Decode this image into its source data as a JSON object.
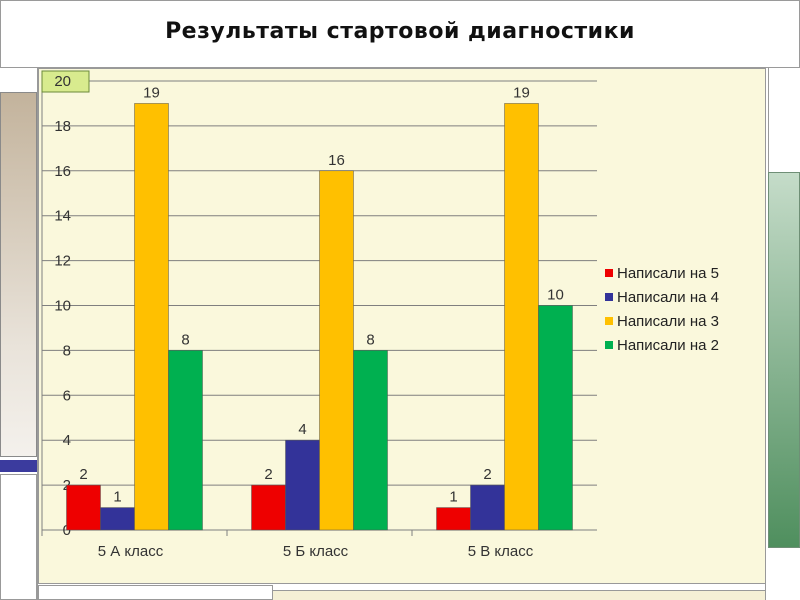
{
  "page": {
    "title": "Результаты стартовой диагностики"
  },
  "chart_data": {
    "type": "bar",
    "title": "",
    "xlabel": "",
    "ylabel": "",
    "categories": [
      "5 А класс",
      "5 Б  класс",
      "5 В класс"
    ],
    "series": [
      {
        "name": "Написали на 5",
        "color": "#ee0000",
        "values": [
          2,
          2,
          1
        ]
      },
      {
        "name": "Написали на 4",
        "color": "#333399",
        "values": [
          1,
          4,
          2
        ]
      },
      {
        "name": "Написали на 3",
        "color": "#ffc000",
        "values": [
          19,
          16,
          19
        ]
      },
      {
        "name": "Написали на 2",
        "color": "#00b050",
        "values": [
          8,
          8,
          10
        ]
      }
    ],
    "ylim": [
      0,
      20
    ],
    "yticks": [
      0,
      2,
      4,
      6,
      8,
      10,
      12,
      14,
      16,
      18,
      20
    ],
    "grid": true,
    "legend_position": "right"
  }
}
